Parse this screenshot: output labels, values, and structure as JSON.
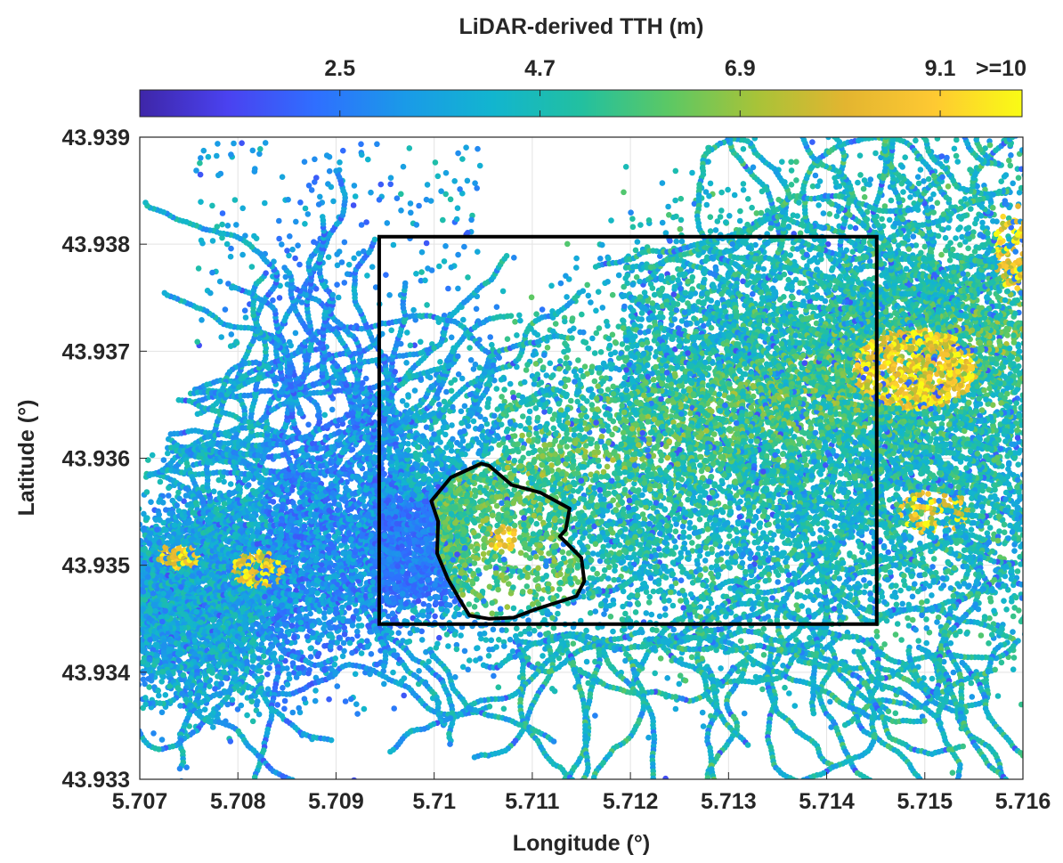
{
  "chart_data": {
    "type": "scatter",
    "title": "",
    "xlabel": "Longitude (°)",
    "ylabel": "Latitude (°)",
    "xlim": [
      5.707,
      5.716
    ],
    "ylim": [
      43.933,
      43.939
    ],
    "x_ticks": [
      "5.707",
      "5.708",
      "5.709",
      "5.71",
      "5.711",
      "5.712",
      "5.713",
      "5.714",
      "5.715",
      "5.716"
    ],
    "y_ticks": [
      "43.933",
      "43.934",
      "43.935",
      "43.936",
      "43.937",
      "43.938",
      "43.939"
    ],
    "grid": true,
    "colorbar": {
      "label": "LiDAR-derived TTH (m)",
      "range": [
        0.3,
        10
      ],
      "ticks": [
        {
          "value": 2.5,
          "label": "2.5"
        },
        {
          "value": 4.7,
          "label": "4.7"
        },
        {
          "value": 6.9,
          "label": "6.9"
        },
        {
          "value": 9.1,
          "label": "9.1"
        },
        {
          "value": 10,
          "label": ">=10"
        }
      ],
      "colormap": [
        "#3e26a8",
        "#4a42f0",
        "#2f6fff",
        "#1a9ae8",
        "#12b5cf",
        "#22c0a0",
        "#5cc864",
        "#a8c338",
        "#e3b530",
        "#fec932",
        "#f9fb15"
      ]
    },
    "regions": [
      {
        "name": "study-rectangle",
        "shape": "rectangle",
        "x": [
          5.70944,
          5.71451
        ],
        "y": [
          43.93445,
          43.93807
        ]
      },
      {
        "name": "patch-polygon",
        "shape": "polygon",
        "points": [
          [
            5.71017,
            43.93582
          ],
          [
            5.71048,
            43.93595
          ],
          [
            5.71056,
            43.93593
          ],
          [
            5.71079,
            43.93575
          ],
          [
            5.71108,
            43.93568
          ],
          [
            5.71138,
            43.93553
          ],
          [
            5.71134,
            43.93533
          ],
          [
            5.71128,
            43.93527
          ],
          [
            5.7115,
            43.93507
          ],
          [
            5.71153,
            43.93485
          ],
          [
            5.71145,
            43.93471
          ],
          [
            5.71104,
            43.93459
          ],
          [
            5.71081,
            43.93451
          ],
          [
            5.71056,
            43.9345
          ],
          [
            5.71036,
            43.93453
          ],
          [
            5.71026,
            43.93468
          ],
          [
            5.71014,
            43.93487
          ],
          [
            5.71003,
            43.93511
          ],
          [
            5.71004,
            43.93541
          ],
          [
            5.70997,
            43.9356
          ],
          [
            5.71017,
            43.93582
          ]
        ]
      }
    ]
  }
}
